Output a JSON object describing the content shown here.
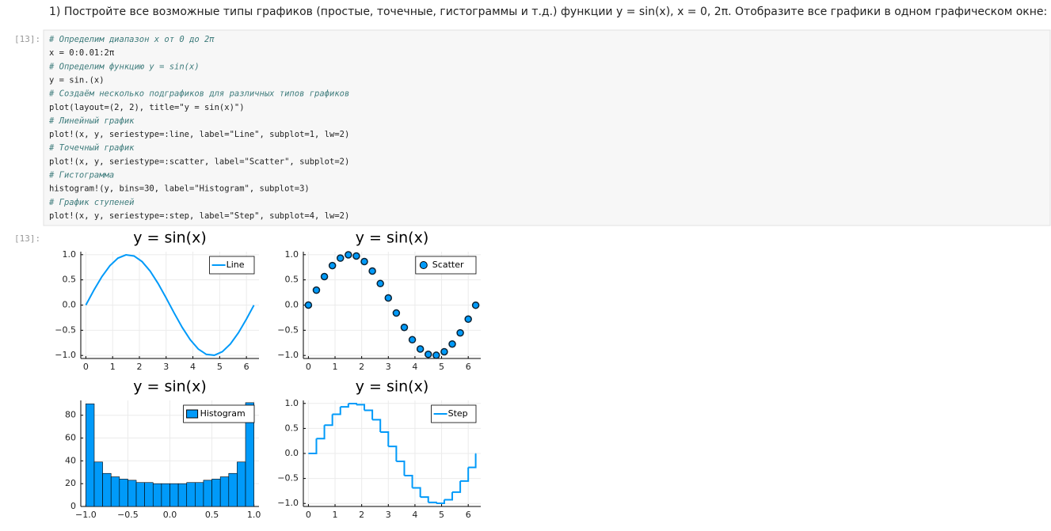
{
  "task": "1) Постройте все возможные типы графиков (простые, точечные, гистограммы и т.д.) функции y = sin(x), x = 0, 2π. Отобразите все графики в одном графическом окне:",
  "input_prompt": "[13]:",
  "output_prompt": "[13]:",
  "code": [
    "# Определим диапазон x от 0 до 2π",
    "x = 0:0.01:2π",
    "# Определим функцию y = sin(x)",
    "y = sin.(x)",
    "# Создаём несколько подграфиков для различных типов графиков",
    "plot(layout=(2, 2), title=\"y = sin(x)\")",
    "# Линейный график",
    "plot!(x, y, seriestype=:line, label=\"Line\", subplot=1, lw=2)",
    "# Точечный график",
    "plot!(x, y, seriestype=:scatter, label=\"Scatter\", subplot=2)",
    "# Гистограмма",
    "histogram!(y, bins=30, label=\"Histogram\", subplot=3)",
    "# График ступеней",
    "plot!(x, y, seriestype=:step, label=\"Step\", subplot=4, lw=2)"
  ],
  "chart_data": [
    {
      "type": "line",
      "title": "y = sin(x)",
      "legend": "topright",
      "grid": true,
      "x": [
        0,
        0.3,
        0.6,
        0.9,
        1.2,
        1.5,
        1.8,
        2.1,
        2.4,
        2.7,
        3.0,
        3.3,
        3.6,
        3.9,
        4.2,
        4.5,
        4.8,
        5.1,
        5.4,
        5.7,
        6.0,
        6.28
      ],
      "series": [
        {
          "name": "Line",
          "color": "#009af9",
          "values": [
            0,
            0.296,
            0.565,
            0.783,
            0.932,
            0.997,
            0.974,
            0.863,
            0.675,
            0.427,
            0.141,
            -0.158,
            -0.443,
            -0.688,
            -0.872,
            -0.978,
            -0.996,
            -0.926,
            -0.773,
            -0.551,
            -0.279,
            -0.003
          ]
        }
      ],
      "xlim": [
        -0.19,
        6.47
      ],
      "xticks": [
        0,
        1,
        2,
        3,
        4,
        5,
        6
      ],
      "ylim": [
        -1.06,
        1.06
      ],
      "yticks": [
        {
          "value": -1,
          "label": "−1.0"
        },
        {
          "value": -0.5,
          "label": "−0.5"
        },
        {
          "value": 0,
          "label": "0.0"
        },
        {
          "value": 0.5,
          "label": "0.5"
        },
        {
          "value": 1,
          "label": "1.0"
        }
      ]
    },
    {
      "type": "scatter",
      "title": "y = sin(x)",
      "legend": "topright",
      "grid": true,
      "x": [
        0,
        0.3,
        0.6,
        0.9,
        1.2,
        1.5,
        1.8,
        2.1,
        2.4,
        2.7,
        3.0,
        3.3,
        3.6,
        3.9,
        4.2,
        4.5,
        4.8,
        5.1,
        5.4,
        5.7,
        6.0,
        6.28
      ],
      "series": [
        {
          "name": "Scatter",
          "color": "#009af9",
          "values": [
            0,
            0.296,
            0.565,
            0.783,
            0.932,
            0.997,
            0.974,
            0.863,
            0.675,
            0.427,
            0.141,
            -0.158,
            -0.443,
            -0.688,
            -0.872,
            -0.978,
            -0.996,
            -0.926,
            -0.773,
            -0.551,
            -0.279,
            -0.003
          ]
        }
      ],
      "xlim": [
        -0.19,
        6.47
      ],
      "xticks": [
        0,
        1,
        2,
        3,
        4,
        5,
        6
      ],
      "ylim": [
        -1.06,
        1.06
      ],
      "yticks": [
        {
          "value": -1,
          "label": "−1.0"
        },
        {
          "value": -0.5,
          "label": "−0.5"
        },
        {
          "value": 0,
          "label": "0.0"
        },
        {
          "value": 0.5,
          "label": "0.5"
        },
        {
          "value": 1,
          "label": "1.0"
        }
      ]
    },
    {
      "type": "histogram",
      "title": "y = sin(x)",
      "legend": "topright",
      "grid": true,
      "bins": [
        -1.0,
        -0.9,
        -0.8,
        -0.7,
        -0.6,
        -0.5,
        -0.4,
        -0.3,
        -0.2,
        -0.1,
        0,
        0.1,
        0.2,
        0.3,
        0.4,
        0.5,
        0.6,
        0.7,
        0.8,
        0.9,
        1.0
      ],
      "series": [
        {
          "name": "Histogram",
          "color": "#009af9",
          "values": [
            90,
            39,
            29,
            26,
            24,
            23,
            21,
            21,
            20,
            20,
            20,
            20,
            21,
            21,
            23,
            24,
            26,
            29,
            39,
            91
          ]
        }
      ],
      "xlim": [
        -1.06,
        1.06
      ],
      "xticks": [
        {
          "value": -1,
          "label": "−1.0"
        },
        {
          "value": -0.5,
          "label": "−0.5"
        },
        {
          "value": 0,
          "label": "0.0"
        },
        {
          "value": 0.5,
          "label": "0.5"
        },
        {
          "value": 1,
          "label": "1.0"
        }
      ],
      "ylim": [
        0,
        93
      ],
      "yticks": [
        0,
        20,
        40,
        60,
        80
      ]
    },
    {
      "type": "step",
      "title": "y = sin(x)",
      "legend": "topright",
      "grid": true,
      "x": [
        0,
        0.3,
        0.6,
        0.9,
        1.2,
        1.5,
        1.8,
        2.1,
        2.4,
        2.7,
        3.0,
        3.3,
        3.6,
        3.9,
        4.2,
        4.5,
        4.8,
        5.1,
        5.4,
        5.7,
        6.0,
        6.28
      ],
      "series": [
        {
          "name": "Step",
          "color": "#009af9",
          "values": [
            0,
            0.296,
            0.565,
            0.783,
            0.932,
            0.997,
            0.974,
            0.863,
            0.675,
            0.427,
            0.141,
            -0.158,
            -0.443,
            -0.688,
            -0.872,
            -0.978,
            -0.996,
            -0.926,
            -0.773,
            -0.551,
            -0.279,
            -0.003
          ]
        }
      ],
      "xlim": [
        -0.19,
        6.47
      ],
      "xticks": [
        0,
        1,
        2,
        3,
        4,
        5,
        6
      ],
      "ylim": [
        -1.06,
        1.06
      ],
      "yticks": [
        {
          "value": -1,
          "label": "−1.0"
        },
        {
          "value": -0.5,
          "label": "−0.5"
        },
        {
          "value": 0,
          "label": "0.0"
        },
        {
          "value": 0.5,
          "label": "0.5"
        },
        {
          "value": 1,
          "label": "1.0"
        }
      ]
    }
  ]
}
